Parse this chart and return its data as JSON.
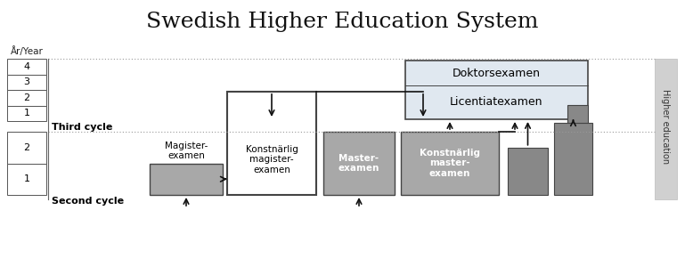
{
  "title": "Swedish Higher Education System",
  "title_fontsize": 18,
  "background_color": "#ffffff",
  "fig_width": 7.69,
  "fig_height": 2.91,
  "left_col_label": "År/Year",
  "year_labels_third": [
    "4",
    "3",
    "2",
    "1"
  ],
  "year_labels_second": [
    "2",
    "1"
  ],
  "third_cycle_label": "Third cycle",
  "second_cycle_label": "Second cycle",
  "higher_education_label": "Higher education",
  "doktors_label": "Doktorsexamen",
  "licentiat_label": "Licentiatexamen",
  "magister_label": "Magister-\nexamen",
  "konsnarlig_magister_label": "Konstnärlig\nmagister-\nexamen",
  "master_label": "Master-\nexamen",
  "konsnarlig_master_label": "Konstnärlig\nmaster-\nexamen",
  "light_gray": "#e0e8f0",
  "med_gray": "#a8a8a8",
  "dark_gray": "#888888",
  "box_border": "#444444",
  "dotted_line_color": "#999999",
  "right_bar_color": "#d0d0d0",
  "white": "#ffffff"
}
